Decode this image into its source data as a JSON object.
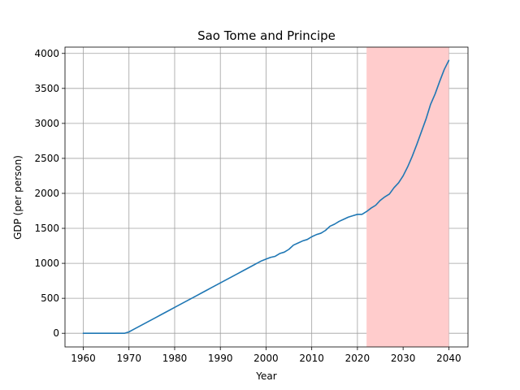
{
  "chart_data": {
    "type": "line",
    "title": "Sao Tome and Principe",
    "xlabel": "Year",
    "ylabel": "GDP (per person)",
    "xlim": [
      1956,
      2044.2
    ],
    "ylim": [
      -195,
      4090
    ],
    "xticks": [
      1960,
      1970,
      1980,
      1990,
      2000,
      2010,
      2020,
      2030,
      2040
    ],
    "yticks": [
      0,
      500,
      1000,
      1500,
      2000,
      2500,
      3000,
      3500,
      4000
    ],
    "grid": true,
    "highlight_span": {
      "x_start": 2022,
      "x_end": 2040,
      "color": "#ffcccc"
    },
    "series": [
      {
        "color": "#1f77b4",
        "x": [
          1960,
          1961,
          1962,
          1963,
          1964,
          1965,
          1966,
          1967,
          1968,
          1969,
          1970,
          1971,
          1972,
          1973,
          1974,
          1975,
          1976,
          1977,
          1978,
          1979,
          1980,
          1981,
          1982,
          1983,
          1984,
          1985,
          1986,
          1987,
          1988,
          1989,
          1990,
          1991,
          1992,
          1993,
          1994,
          1995,
          1996,
          1997,
          1998,
          1999,
          2000,
          2001,
          2002,
          2003,
          2004,
          2005,
          2006,
          2007,
          2008,
          2009,
          2010,
          2011,
          2012,
          2013,
          2014,
          2015,
          2016,
          2017,
          2018,
          2019,
          2020,
          2021,
          2022,
          2023,
          2024,
          2025,
          2026,
          2027,
          2028,
          2029,
          2030,
          2031,
          2032,
          2033,
          2034,
          2035,
          2036,
          2037,
          2038,
          2039,
          2040
        ],
        "values": [
          0,
          0,
          0,
          0,
          0,
          0,
          0,
          0,
          0,
          0,
          20,
          55,
          90,
          125,
          160,
          195,
          230,
          265,
          300,
          335,
          370,
          405,
          440,
          475,
          510,
          545,
          580,
          615,
          650,
          685,
          720,
          755,
          790,
          825,
          860,
          895,
          930,
          965,
          1000,
          1035,
          1060,
          1085,
          1100,
          1140,
          1160,
          1200,
          1260,
          1290,
          1320,
          1340,
          1380,
          1410,
          1430,
          1470,
          1530,
          1560,
          1600,
          1630,
          1660,
          1680,
          1700,
          1700,
          1740,
          1790,
          1830,
          1900,
          1950,
          1990,
          2080,
          2150,
          2250,
          2380,
          2530,
          2700,
          2880,
          3060,
          3270,
          3420,
          3600,
          3770,
          3900
        ]
      }
    ]
  }
}
